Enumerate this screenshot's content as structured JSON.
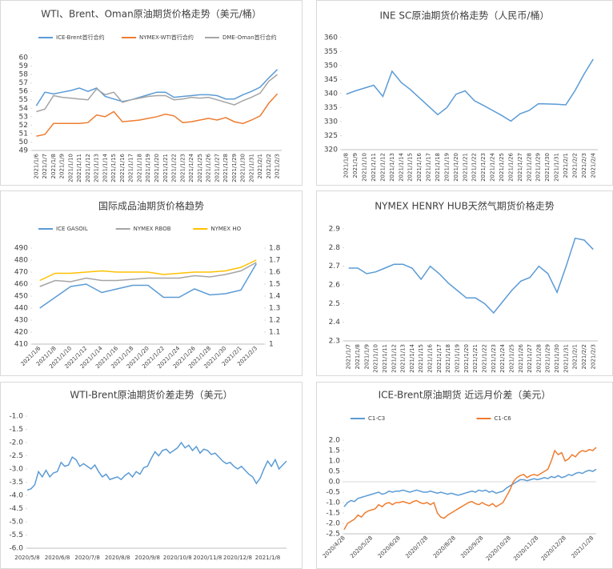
{
  "chart_data": [
    {
      "type": "line",
      "title": "WTI、Brent、Oman原油期货价格走势（美元/桶）",
      "categories": [
        "2021/1/6",
        "2021/1/7",
        "2021/1/8",
        "2021/1/9",
        "2021/1/10",
        "2021/1/11",
        "2021/1/12",
        "2021/1/13",
        "2021/1/14",
        "2021/1/15",
        "2021/1/16",
        "2021/1/17",
        "2021/1/18",
        "2021/1/19",
        "2021/1/20",
        "2021/1/21",
        "2021/1/22",
        "2021/1/23",
        "2021/1/24",
        "2021/1/25",
        "2021/1/26",
        "2021/1/27",
        "2021/1/28",
        "2021/1/29",
        "2021/1/30",
        "2021/1/31",
        "2021/2/1",
        "2021/2/2",
        "2021/2/3"
      ],
      "series": [
        {
          "name": "ICE-Brent首行合约",
          "color": "#5b9bd5",
          "values": [
            54.3,
            55.9,
            55.7,
            55.9,
            56.1,
            56.4,
            56.0,
            56.4,
            55.4,
            55.1,
            54.8,
            55.0,
            55.3,
            55.6,
            55.9,
            55.9,
            55.3,
            55.4,
            55.5,
            55.6,
            55.6,
            55.5,
            55.1,
            55.1,
            55.6,
            56.0,
            56.5,
            57.6,
            58.6
          ]
        },
        {
          "name": "NYMEX-WTI首行合约",
          "color": "#ed7d31",
          "values": [
            50.7,
            50.9,
            52.2,
            52.2,
            52.2,
            52.2,
            52.3,
            53.2,
            53.0,
            53.6,
            52.4,
            52.5,
            52.6,
            52.8,
            53.0,
            53.3,
            53.1,
            52.3,
            52.4,
            52.6,
            52.8,
            52.6,
            52.9,
            52.4,
            52.2,
            52.6,
            53.1,
            54.6,
            55.7
          ]
        },
        {
          "name": "DME-Oman首行合约",
          "color": "#a5a5a5",
          "values": [
            53.6,
            53.9,
            55.5,
            55.3,
            55.2,
            55.1,
            55.0,
            56.3,
            55.6,
            55.9,
            54.7,
            55.0,
            55.2,
            55.4,
            55.5,
            55.5,
            55.0,
            55.1,
            55.3,
            55.2,
            55.3,
            55.0,
            54.7,
            54.4,
            54.9,
            55.3,
            55.8,
            57.2,
            58.0
          ]
        }
      ],
      "ylim": [
        49,
        60
      ],
      "yticks": [
        49,
        50,
        51,
        52,
        53,
        54,
        55,
        56,
        57,
        58,
        59,
        60
      ],
      "grid": false,
      "legend": "top"
    },
    {
      "type": "line",
      "title": "INE SC原油期货价格走势（人民币/桶）",
      "categories": [
        "2021/1/8",
        "2021/1/9",
        "2021/1/10",
        "2021/1/11",
        "2021/1/12",
        "2021/1/13",
        "2021/1/14",
        "2021/1/15",
        "2021/1/16",
        "2021/1/17",
        "2021/1/18",
        "2021/1/19",
        "2021/1/20",
        "2021/1/21",
        "2021/1/22",
        "2021/1/23",
        "2021/1/24",
        "2021/1/25",
        "2021/1/26",
        "2021/1/27",
        "2021/1/28",
        "2021/1/29",
        "2021/1/30",
        "2021/1/31",
        "2021/2/1",
        "2021/2/2",
        "2021/2/3",
        "2021/2/4"
      ],
      "series": [
        {
          "color": "#5b9bd5",
          "values": [
            339.8,
            341,
            342,
            343,
            339,
            348,
            344,
            341.5,
            338.5,
            335.5,
            332.5,
            335,
            339.8,
            341,
            337.5,
            335.8,
            334,
            332.2,
            330.2,
            332.8,
            334,
            336.4,
            336.3,
            336.2,
            336,
            341,
            347,
            352.3
          ]
        }
      ],
      "ylim": [
        320,
        360
      ],
      "yticks": [
        320,
        325,
        330,
        335,
        340,
        345,
        350,
        355,
        360
      ],
      "grid": false
    },
    {
      "type": "line",
      "title": "国际成品油期货价格趋势",
      "categories": [
        "2021/1/6",
        "2021/1/8",
        "2021/1/10",
        "2021/1/12",
        "2021/1/14",
        "2021/1/16",
        "2021/1/18",
        "2021/1/20",
        "2021/1/22",
        "2021/1/24",
        "2021/1/26",
        "2021/1/28",
        "2021/1/30",
        "2021/2/1",
        "2021/2/3"
      ],
      "series": [
        {
          "name": "ICE GASOIL",
          "color": "#5b9bd5",
          "values": [
            440,
            449,
            458,
            460,
            453,
            456,
            459,
            459,
            449,
            449,
            456,
            451,
            452,
            455,
            477
          ]
        },
        {
          "name": "NYMEX RBOB",
          "color": "#a5a5a5",
          "axis": "y2",
          "values": [
            1.48,
            1.53,
            1.52,
            1.55,
            1.53,
            1.53,
            1.54,
            1.55,
            1.55,
            1.55,
            1.57,
            1.56,
            1.58,
            1.61,
            1.68
          ]
        },
        {
          "name": "NYMEX HO",
          "color": "#ffc000",
          "axis": "y2",
          "values": [
            1.53,
            1.59,
            1.59,
            1.6,
            1.61,
            1.6,
            1.6,
            1.6,
            1.58,
            1.59,
            1.6,
            1.6,
            1.61,
            1.64,
            1.7
          ]
        }
      ],
      "ylim": [
        410,
        490
      ],
      "yticks": [
        410,
        420,
        430,
        440,
        450,
        460,
        470,
        480,
        490
      ],
      "y2lim": [
        1,
        1.8
      ],
      "y2ticks": [
        1,
        1.1,
        1.2,
        1.3,
        1.4,
        1.5,
        1.6,
        1.7,
        1.8
      ],
      "grid": false,
      "legend": "top"
    },
    {
      "type": "line",
      "title": "NYMEX HENRY HUB天然气期货价格走势",
      "categories": [
        "2021/1/7",
        "2021/1/8",
        "2021/1/9",
        "2021/1/10",
        "2021/1/11",
        "2021/1/12",
        "2021/1/13",
        "2021/1/14",
        "2021/1/15",
        "2021/1/16",
        "2021/1/17",
        "2021/1/18",
        "2021/1/19",
        "2021/1/20",
        "2021/1/21",
        "2021/1/22",
        "2021/1/23",
        "2021/1/24",
        "2021/1/25",
        "2021/1/26",
        "2021/1/27",
        "2021/1/28",
        "2021/1/29",
        "2021/1/30",
        "2021/1/31",
        "2021/2/1",
        "2021/2/2",
        "2021/2/3"
      ],
      "series": [
        {
          "color": "#5b9bd5",
          "values": [
            2.69,
            2.69,
            2.66,
            2.67,
            2.69,
            2.71,
            2.71,
            2.69,
            2.63,
            2.7,
            2.66,
            2.61,
            2.57,
            2.53,
            2.53,
            2.5,
            2.45,
            2.51,
            2.57,
            2.62,
            2.64,
            2.7,
            2.66,
            2.56,
            2.7,
            2.85,
            2.84,
            2.79
          ]
        }
      ],
      "ylim": [
        2.3,
        2.9
      ],
      "yticks": [
        2.3,
        2.4,
        2.5,
        2.6,
        2.7,
        2.8,
        2.9
      ],
      "grid": false
    },
    {
      "type": "line",
      "title": "WTI-Brent原油期货价差走势（美元）",
      "categories": [
        "2020/5/8",
        null,
        null,
        null,
        null,
        null,
        null,
        null,
        "2020/6/8",
        null,
        null,
        null,
        null,
        null,
        null,
        null,
        "2020/7/8",
        null,
        null,
        null,
        null,
        null,
        null,
        null,
        "2020/8/8",
        null,
        null,
        null,
        null,
        null,
        null,
        null,
        "2020/9/8",
        null,
        null,
        null,
        null,
        null,
        null,
        null,
        "2020/10/8",
        null,
        null,
        null,
        null,
        null,
        null,
        null,
        "2020/11/8",
        null,
        null,
        null,
        null,
        null,
        null,
        null,
        "2020/12/8",
        null,
        null,
        null,
        null,
        null,
        null,
        null,
        "2021/1/8",
        null,
        null,
        null,
        null,
        null
      ],
      "series": [
        {
          "color": "#5b9bd5",
          "values": [
            -3.8,
            -3.75,
            -3.6,
            -3.1,
            -3.3,
            -3.05,
            -3.3,
            -3.15,
            -3.1,
            -2.75,
            -2.9,
            -2.85,
            -2.55,
            -2.65,
            -2.9,
            -2.8,
            -2.9,
            -3.0,
            -2.85,
            -3.1,
            -3.3,
            -3.2,
            -3.4,
            -3.35,
            -3.3,
            -3.4,
            -3.25,
            -3.15,
            -3.3,
            -3.1,
            -3.2,
            -2.95,
            -2.9,
            -2.6,
            -2.35,
            -2.5,
            -2.3,
            -2.25,
            -2.4,
            -2.3,
            -2.2,
            -2.0,
            -2.2,
            -2.1,
            -2.3,
            -2.15,
            -2.4,
            -2.25,
            -2.3,
            -2.45,
            -2.4,
            -2.55,
            -2.7,
            -2.8,
            -2.75,
            -2.9,
            -3.0,
            -2.9,
            -3.05,
            -3.2,
            -3.3,
            -3.55,
            -3.35,
            -3.0,
            -2.7,
            -2.9,
            -2.65,
            -3.0,
            -2.85,
            -2.7
          ]
        }
      ],
      "ylim": [
        -6,
        -1
      ],
      "yticks": [
        {
          "value": -1,
          "label": "-1.0"
        },
        -1.5,
        {
          "value": -2,
          "label": "-2.0"
        },
        -2.5,
        {
          "value": -3,
          "label": "-3.0"
        },
        -3.5,
        {
          "value": -4,
          "label": "-4.0"
        },
        -4.5,
        {
          "value": -5,
          "label": "-5.0"
        },
        -5.5,
        {
          "value": -6,
          "label": "-6.0"
        }
      ],
      "grid": false
    },
    {
      "type": "line",
      "title": "ICE-Brent原油期货 近远月价差（美元）",
      "categories": [
        "2020/4/28",
        null,
        null,
        null,
        null,
        null,
        null,
        null,
        "2020/5/28",
        null,
        null,
        null,
        null,
        null,
        null,
        null,
        "2020/6/28",
        null,
        null,
        null,
        null,
        null,
        null,
        null,
        "2020/7/28",
        null,
        null,
        null,
        null,
        null,
        null,
        null,
        "2020/8/28",
        null,
        null,
        null,
        null,
        null,
        null,
        null,
        "2020/9/28",
        null,
        null,
        null,
        null,
        null,
        null,
        null,
        "2020/10/28",
        null,
        null,
        null,
        null,
        null,
        null,
        null,
        "2020/11/28",
        null,
        null,
        null,
        null,
        null,
        null,
        null,
        "2020/12/28",
        null,
        null,
        null,
        null,
        null,
        null,
        null,
        "2021/1/28",
        null
      ],
      "series": [
        {
          "name": "C1-C3",
          "color": "#5b9bd5",
          "values": [
            -1.2,
            -1.0,
            -0.9,
            -0.95,
            -0.8,
            -0.75,
            -0.7,
            -0.65,
            -0.6,
            -0.55,
            -0.5,
            -0.6,
            -0.55,
            -0.45,
            -0.5,
            -0.45,
            -0.45,
            -0.4,
            -0.45,
            -0.5,
            -0.45,
            -0.4,
            -0.45,
            -0.5,
            -0.5,
            -0.45,
            -0.5,
            -0.55,
            -0.5,
            -0.55,
            -0.6,
            -0.55,
            -0.6,
            -0.65,
            -0.6,
            -0.55,
            -0.5,
            -0.45,
            -0.5,
            -0.4,
            -0.45,
            -0.4,
            -0.5,
            -0.45,
            -0.55,
            -0.5,
            -0.45,
            -0.3,
            -0.2,
            -0.1,
            0.0,
            0.1,
            0.1,
            0.05,
            0.1,
            0.15,
            0.1,
            0.15,
            0.2,
            0.15,
            0.25,
            0.2,
            0.3,
            0.2,
            0.25,
            0.35,
            0.3,
            0.4,
            0.45,
            0.4,
            0.5,
            0.55,
            0.5,
            0.6
          ]
        },
        {
          "name": "C1-C6",
          "color": "#ed7d31",
          "values": [
            -2.3,
            -2.0,
            -1.9,
            -1.8,
            -1.6,
            -1.7,
            -1.5,
            -1.4,
            -1.35,
            -1.3,
            -1.1,
            -1.2,
            -1.05,
            -1.0,
            -1.1,
            -1.0,
            -1.0,
            -0.95,
            -1.0,
            -1.05,
            -0.95,
            -0.9,
            -1.0,
            -1.05,
            -1.0,
            -1.1,
            -1.0,
            -1.5,
            -1.7,
            -1.75,
            -1.6,
            -1.5,
            -1.4,
            -1.3,
            -1.2,
            -1.1,
            -1.0,
            -0.95,
            -1.05,
            -1.1,
            -1.0,
            -1.1,
            -1.15,
            -1.05,
            -1.2,
            -1.1,
            -1.0,
            -0.7,
            -0.4,
            0.0,
            0.2,
            0.3,
            0.35,
            0.2,
            0.3,
            0.35,
            0.3,
            0.4,
            0.5,
            0.6,
            1.0,
            1.5,
            1.3,
            1.4,
            1.0,
            1.1,
            1.3,
            1.2,
            1.4,
            1.5,
            1.45,
            1.55,
            1.5,
            1.65
          ]
        }
      ],
      "ylim": [
        -2.5,
        2
      ],
      "yticks": [
        -2.5,
        {
          "value": -2,
          "label": "-2.0"
        },
        -1.5,
        {
          "value": -1,
          "label": "-1.0"
        },
        -0.5,
        {
          "value": 0,
          "label": "0.0"
        },
        0.5,
        {
          "value": 1,
          "label": "1.0"
        },
        1.5,
        {
          "value": 2,
          "label": "2.0"
        }
      ],
      "grid": false,
      "legend": "top"
    }
  ]
}
